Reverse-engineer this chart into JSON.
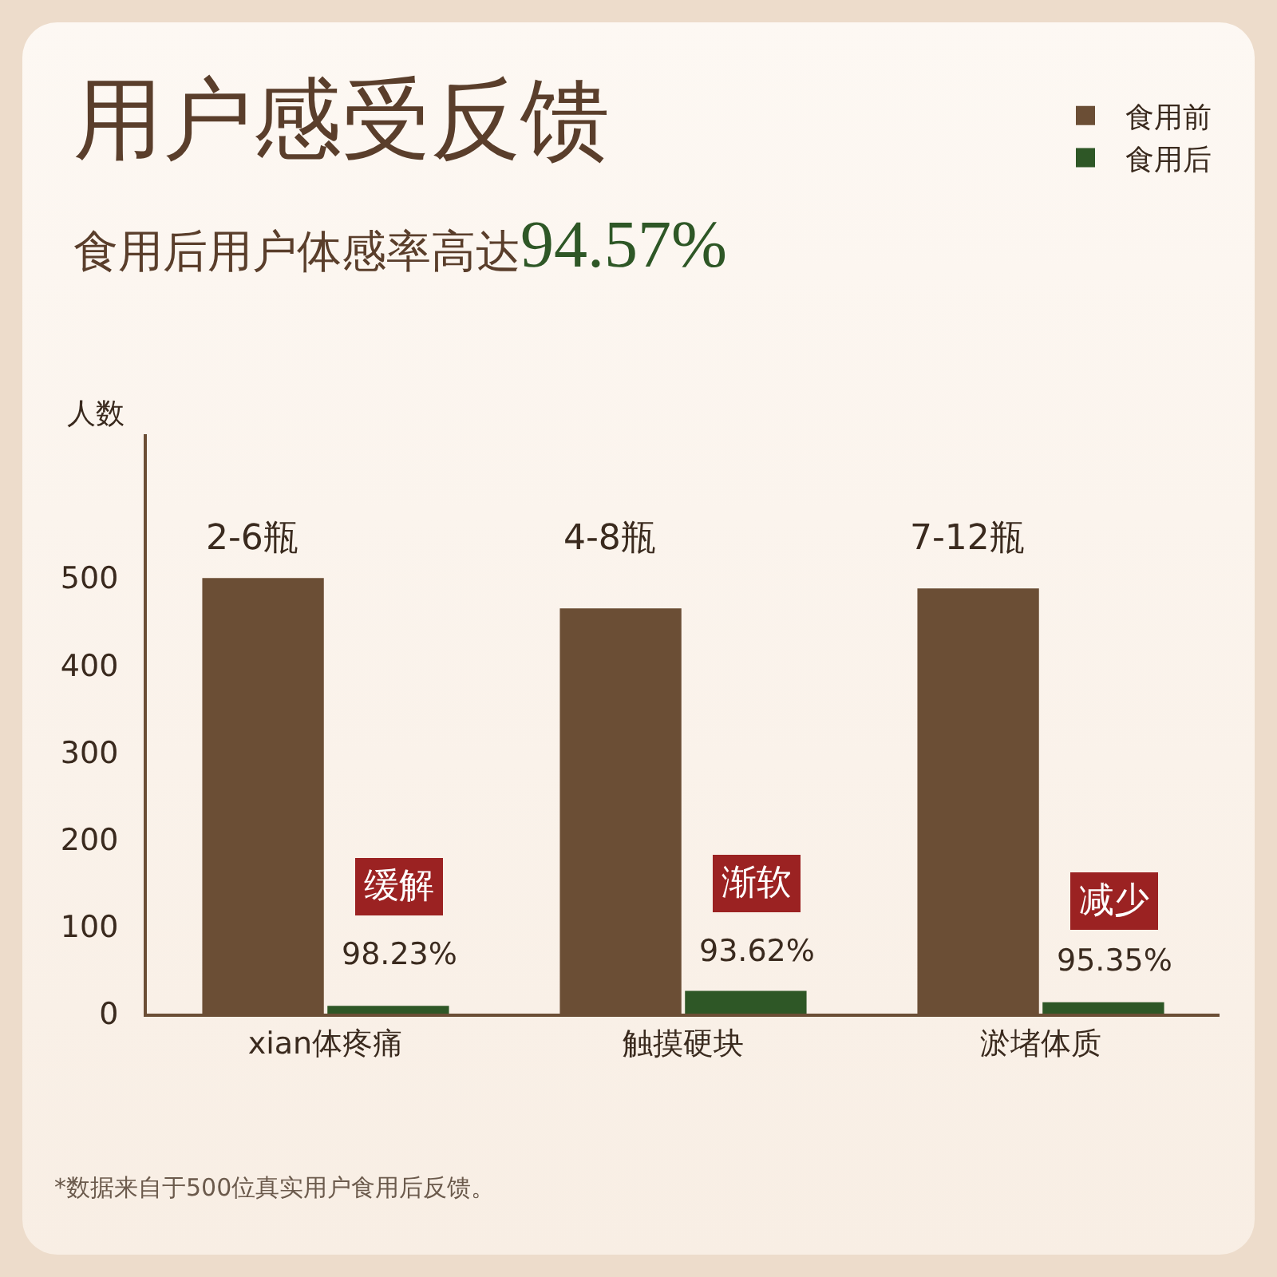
{
  "chart_data": {
    "type": "bar",
    "title": "用户感受反馈",
    "subtitle": "食用后用户体感率高达94.57%",
    "ylabel": "人数",
    "categories": [
      "xian体疼痛",
      "触摸硬块",
      "淤堵体质"
    ],
    "series": [
      {
        "name": "食用前",
        "color": "#6b4e35",
        "values": [
          500,
          465,
          488
        ]
      },
      {
        "name": "食用后",
        "color": "#2e5726",
        "values": [
          9,
          26,
          13
        ]
      }
    ],
    "ylim": [
      0,
      665
    ],
    "yticks": [
      0,
      100,
      200,
      300,
      400,
      500
    ],
    "grid": false,
    "legend": "top right",
    "annotations": [
      "2-6瓶",
      {
        "text": "缓解",
        "x": "xian体疼痛",
        "y": 145
      },
      {
        "text": "98.23%",
        "x": "xian体疼痛",
        "y": 68
      },
      "4-8瓶",
      {
        "text": "渐软",
        "x": "触摸硬块",
        "y": 150
      },
      {
        "text": "93.62%",
        "x": "触摸硬块",
        "y": 72
      },
      "7-12瓶",
      {
        "text": "减少",
        "x": "淤堵体质",
        "y": 130
      },
      {
        "text": "95.35%",
        "x": "淤堵体质",
        "y": 60
      },
      "*数据来自于500位真实用户食用后反馈。"
    ]
  }
}
